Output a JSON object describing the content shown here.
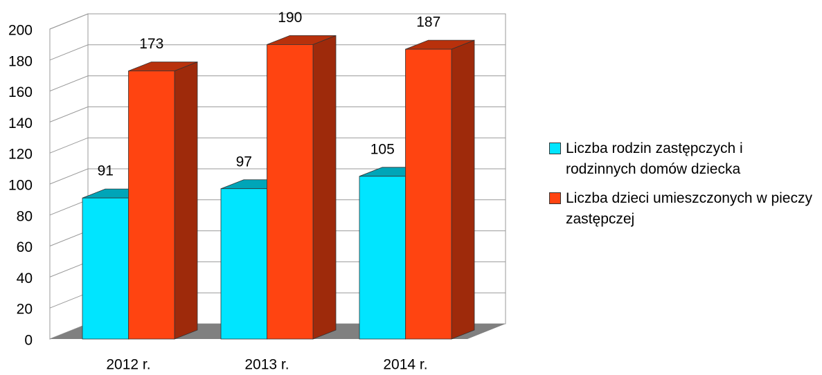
{
  "chart_data": {
    "type": "bar3d",
    "categories": [
      "2012 r.",
      "2013 r.",
      "2014 r."
    ],
    "series": [
      {
        "name": "Liczba rodzin zastępczych i rodzinnych domów dziecka",
        "color": "#00e5ff",
        "values": [
          91,
          97,
          105
        ]
      },
      {
        "name": "Liczba dzieci umieszczonych w pieczy zastępczej",
        "color": "#ff4411",
        "values": [
          173,
          190,
          187
        ]
      }
    ],
    "ylim": [
      0,
      200
    ],
    "yticks": [
      0,
      20,
      40,
      60,
      80,
      100,
      120,
      140,
      160,
      180,
      200
    ],
    "grid": true,
    "legend": "right"
  }
}
